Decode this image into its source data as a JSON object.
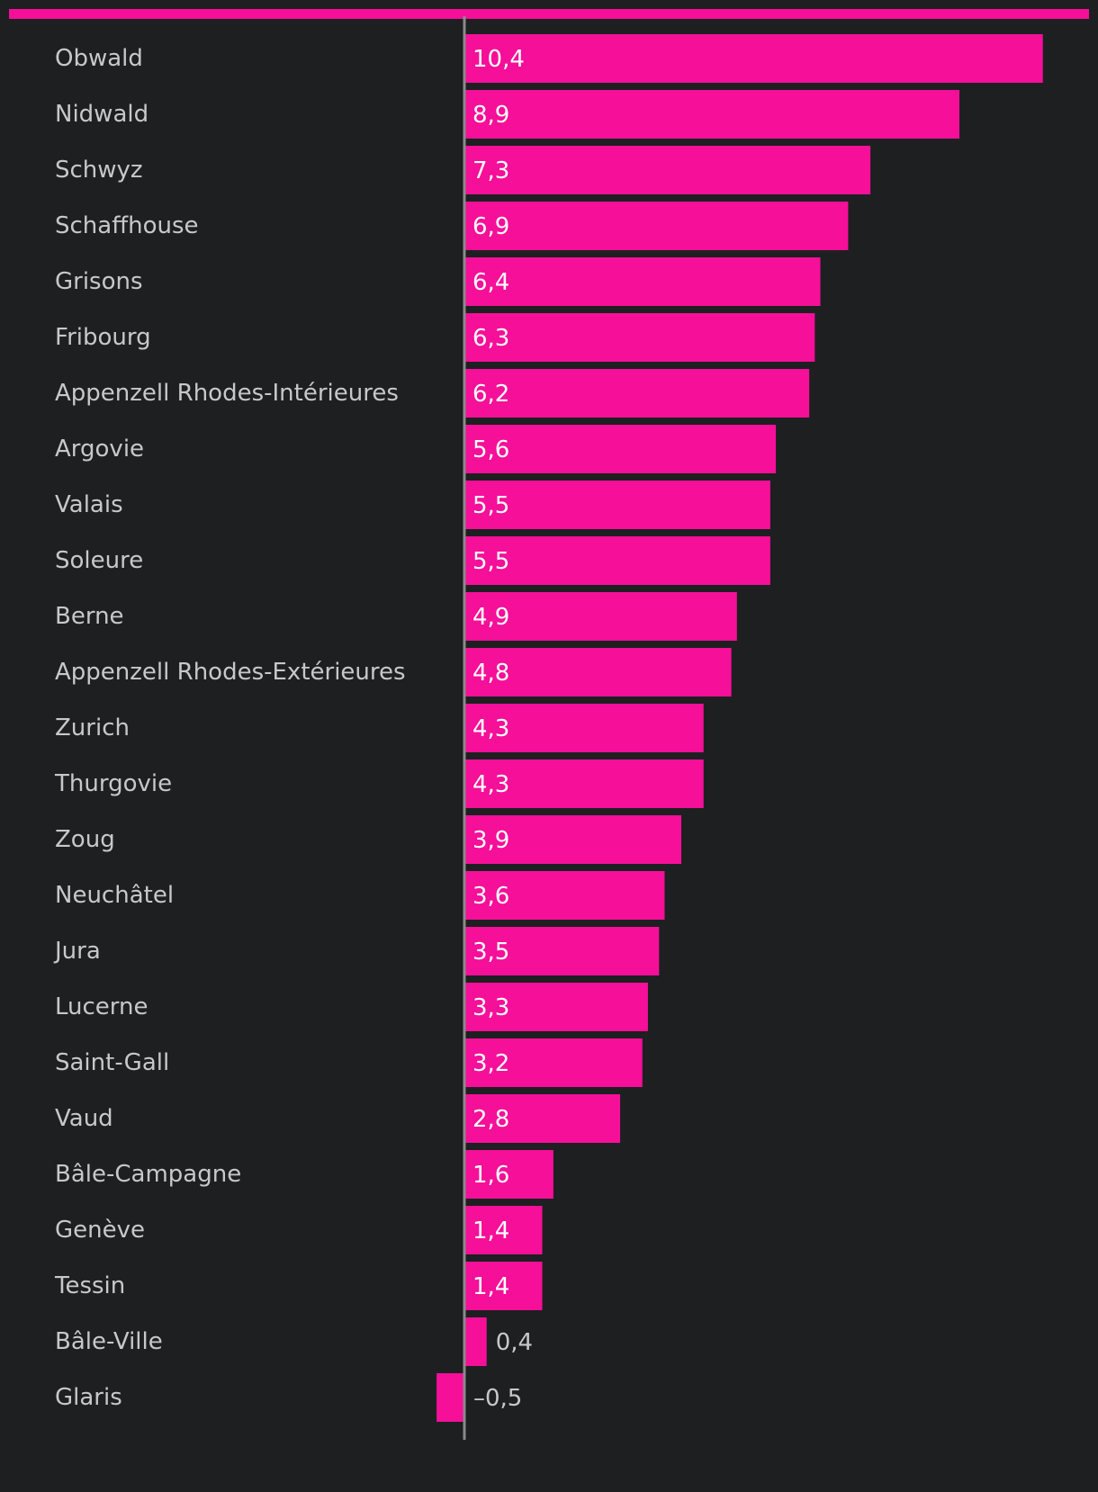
{
  "colors": {
    "background": "#1e1f21",
    "accent": "#f50f99",
    "axis": "#8a8a8a",
    "label": "#c8c8c8",
    "value_inside": "#ffffff"
  },
  "chart_data": {
    "type": "bar",
    "orientation": "horizontal",
    "title": "",
    "xlabel": "",
    "ylabel": "",
    "grid": false,
    "xlim": [
      -0.5,
      10.4
    ],
    "categories": [
      "Obwald",
      "Nidwald",
      "Schwyz",
      "Schaffhouse",
      "Grisons",
      "Fribourg",
      "Appenzell Rhodes-Intérieures",
      "Argovie",
      "Valais",
      "Soleure",
      "Berne",
      "Appenzell Rhodes-Extérieures",
      "Zurich",
      "Thurgovie",
      "Zoug",
      "Neuchâtel",
      "Jura",
      "Lucerne",
      "Saint-Gall",
      "Vaud",
      "Bâle-Campagne",
      "Genève",
      "Tessin",
      "Bâle-Ville",
      "Glaris"
    ],
    "values": [
      10.4,
      8.9,
      7.3,
      6.9,
      6.4,
      6.3,
      6.2,
      5.6,
      5.5,
      5.5,
      4.9,
      4.8,
      4.3,
      4.3,
      3.9,
      3.6,
      3.5,
      3.3,
      3.2,
      2.8,
      1.6,
      1.4,
      1.4,
      0.4,
      -0.5
    ],
    "value_labels": [
      "10,4",
      "8,9",
      "7,3",
      "6,9",
      "6,4",
      "6,3",
      "6,2",
      "5,6",
      "5,5",
      "5,5",
      "4,9",
      "4,8",
      "4,3",
      "4,3",
      "3,9",
      "3,6",
      "3,5",
      "3,3",
      "3,2",
      "2,8",
      "1,6",
      "1,4",
      "1,4",
      "0,4",
      "–0,5"
    ]
  }
}
